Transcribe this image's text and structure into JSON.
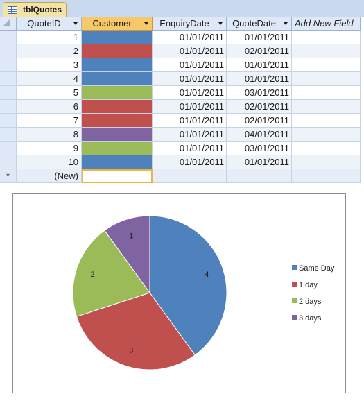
{
  "tab": {
    "label": "tblQuotes",
    "icon": "table-icon"
  },
  "table": {
    "columns": [
      "QuoteID",
      "Customer",
      "EnquiryDate",
      "QuoteDate",
      "Add New Field"
    ],
    "rows": [
      {
        "id": "1",
        "customer_color": "#4f81bd",
        "enquiry": "01/01/2011",
        "quote": "01/01/2011"
      },
      {
        "id": "2",
        "customer_color": "#c0504d",
        "enquiry": "01/01/2011",
        "quote": "02/01/2011"
      },
      {
        "id": "3",
        "customer_color": "#4f81bd",
        "enquiry": "01/01/2011",
        "quote": "01/01/2011"
      },
      {
        "id": "4",
        "customer_color": "#4f81bd",
        "enquiry": "01/01/2011",
        "quote": "01/01/2011"
      },
      {
        "id": "5",
        "customer_color": "#9bbb59",
        "enquiry": "01/01/2011",
        "quote": "03/01/2011"
      },
      {
        "id": "6",
        "customer_color": "#c0504d",
        "enquiry": "01/01/2011",
        "quote": "02/01/2011"
      },
      {
        "id": "7",
        "customer_color": "#c0504d",
        "enquiry": "01/01/2011",
        "quote": "02/01/2011"
      },
      {
        "id": "8",
        "customer_color": "#8064a2",
        "enquiry": "01/01/2011",
        "quote": "04/01/2011"
      },
      {
        "id": "9",
        "customer_color": "#9bbb59",
        "enquiry": "01/01/2011",
        "quote": "03/01/2011"
      },
      {
        "id": "10",
        "customer_color": "#4f81bd",
        "enquiry": "01/01/2011",
        "quote": "01/01/2011"
      }
    ],
    "new_row": {
      "selector": "*",
      "id": "(New)"
    }
  },
  "chart_data": {
    "type": "pie",
    "categories": [
      "Same Day",
      "1 day",
      "2 days",
      "3 days"
    ],
    "values": [
      4,
      3,
      2,
      1
    ],
    "colors": [
      "#4f81bd",
      "#c0504d",
      "#9bbb59",
      "#8064a2"
    ],
    "data_labels": [
      "4",
      "3",
      "2",
      "1"
    ],
    "legend_position": "right",
    "title": ""
  }
}
